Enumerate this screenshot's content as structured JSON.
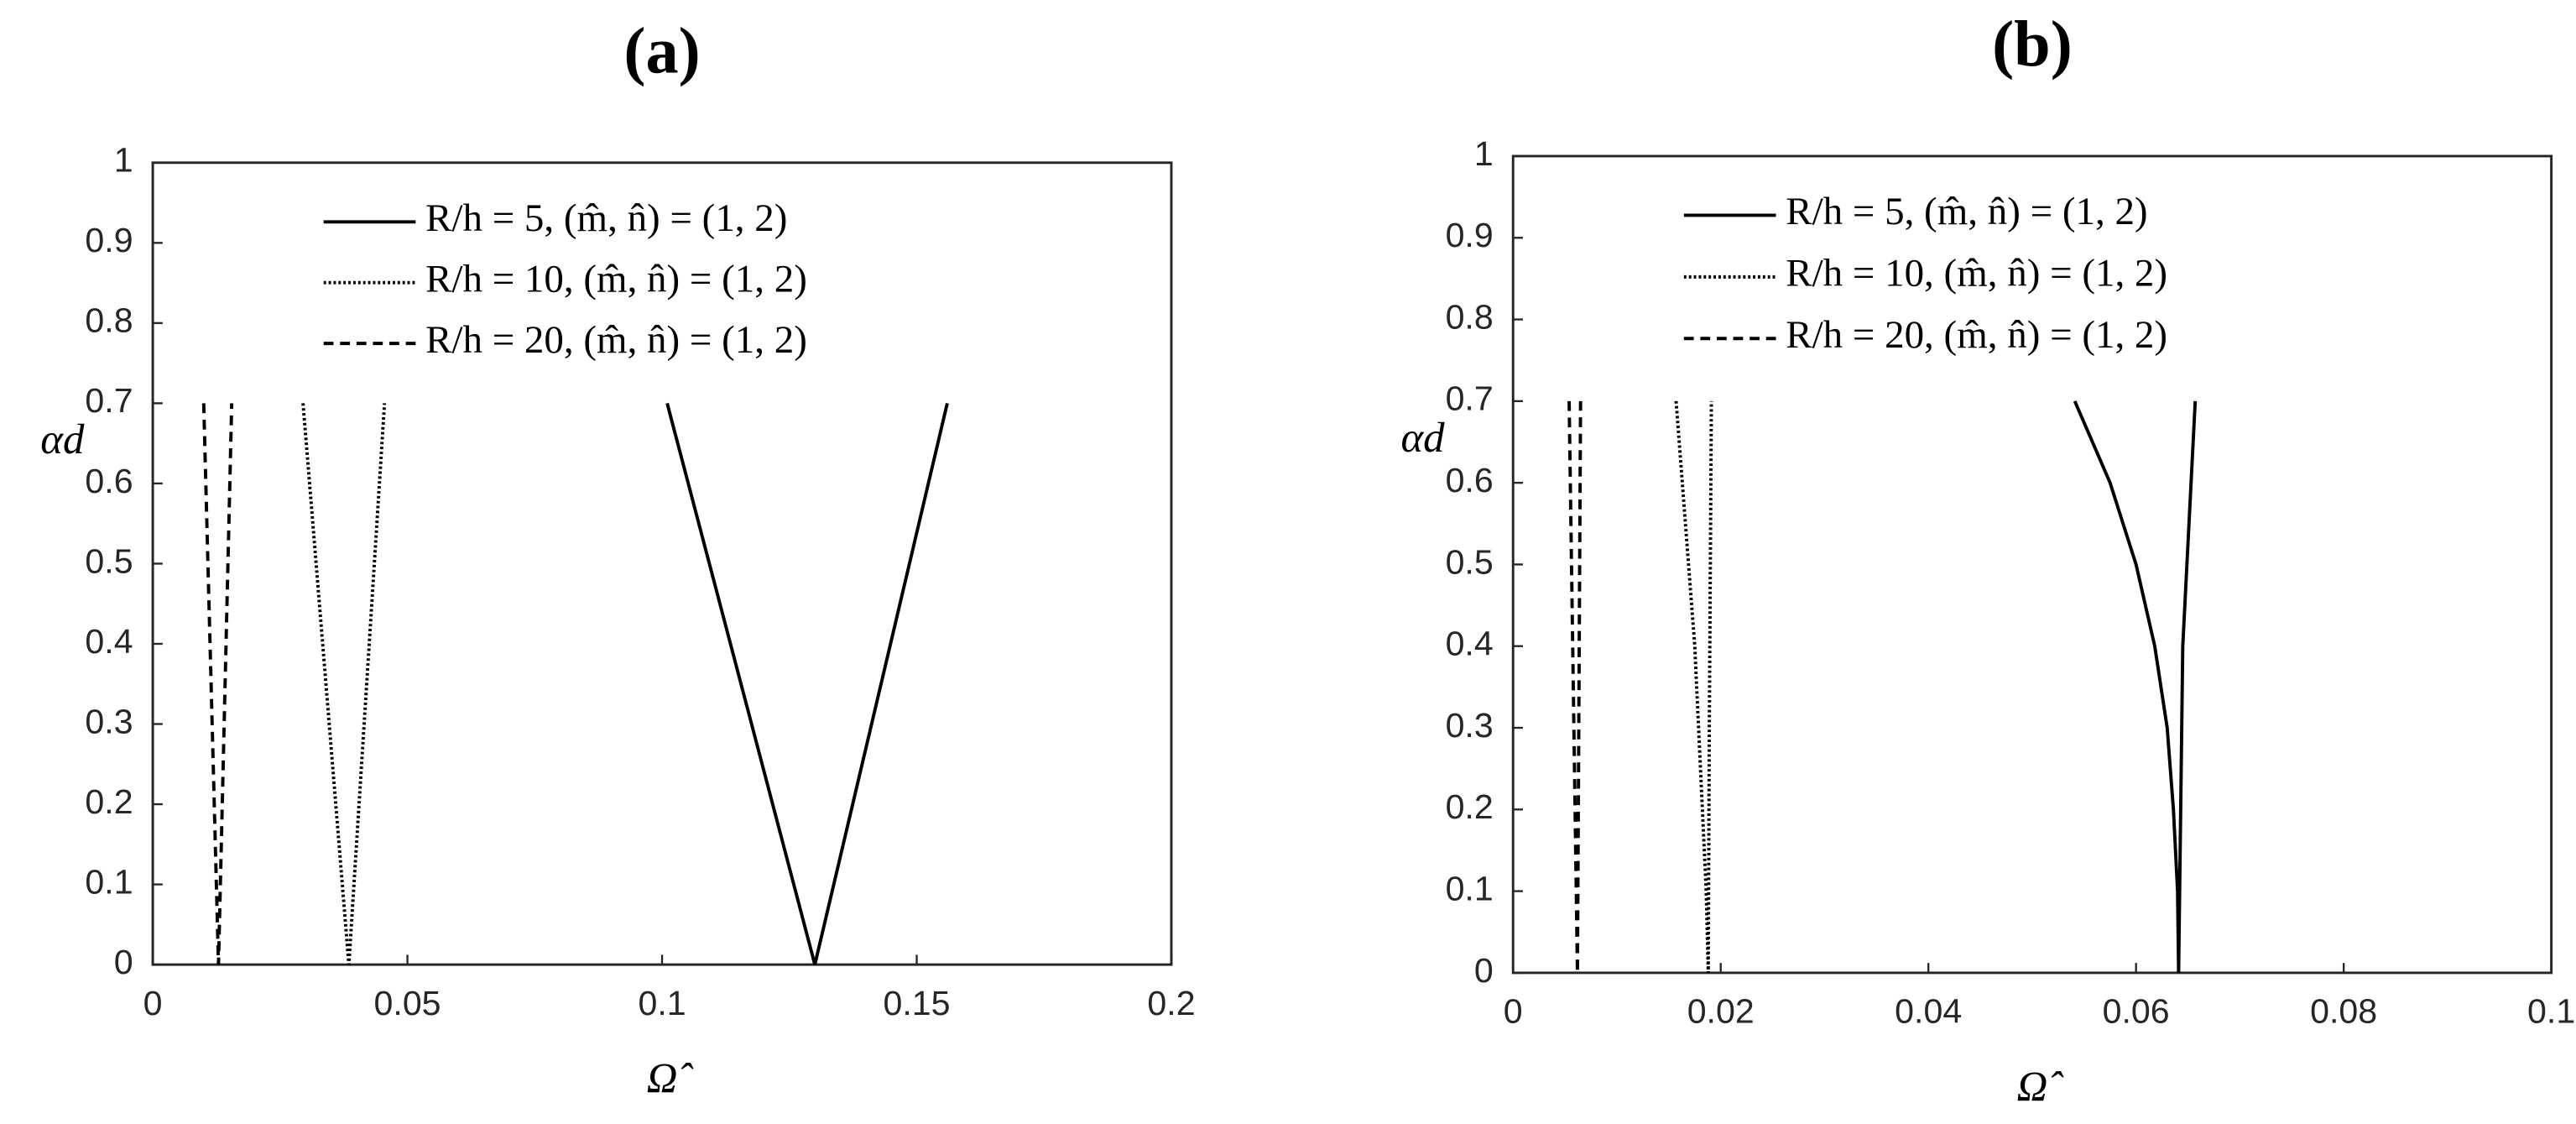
{
  "chart_data": [
    {
      "type": "line",
      "title": "(a)",
      "x_label": "Ω̂",
      "y_label": "αd",
      "xlim": [
        0,
        0.2
      ],
      "ylim": [
        0,
        1
      ],
      "xticks": [
        0,
        0.05,
        0.1,
        0.15,
        0.2
      ],
      "yticks": [
        0,
        0.1,
        0.2,
        0.3,
        0.4,
        0.5,
        0.6,
        0.7,
        0.8,
        0.9,
        1
      ],
      "legend": "upper right",
      "series": [
        {
          "name": "R/h = 5, (m̂, n̂) = (1, 2)",
          "color": "#000000",
          "line_style": "solid",
          "x": [
            0.101,
            0.13,
            0.156
          ],
          "values": [
            0.7,
            0,
            0.7
          ]
        },
        {
          "name": "R/h = 10, (m̂, n̂) = (1, 2)",
          "color": "#000000",
          "line_style": "dotted",
          "x": [
            0.0295,
            0.0385,
            0.0455
          ],
          "values": [
            0.7,
            0,
            0.7
          ]
        },
        {
          "name": "R/h = 20, (m̂, n̂) = (1, 2)",
          "color": "#000000",
          "line_style": "dashed",
          "x": [
            0.01,
            0.0129,
            0.0155
          ],
          "values": [
            0.7,
            0,
            0.7
          ]
        }
      ]
    },
    {
      "type": "line",
      "title": "(b)",
      "x_label": "Ω̂",
      "y_label": "αd",
      "xlim": [
        0,
        0.1
      ],
      "ylim": [
        0,
        1
      ],
      "xticks": [
        0,
        0.02,
        0.04,
        0.06,
        0.08,
        0.1
      ],
      "yticks": [
        0,
        0.1,
        0.2,
        0.3,
        0.4,
        0.5,
        0.6,
        0.7,
        0.8,
        0.9,
        1
      ],
      "legend": "upper right",
      "series": [
        {
          "name": "R/h = 5, (m̂, n̂) = (1, 2)",
          "color": "#000000",
          "line_style": "solid",
          "x": [
            0.0541,
            0.0575,
            0.06,
            0.0618,
            0.063,
            0.0636,
            0.064,
            0.0641,
            0.0642,
            0.0645,
            0.0657
          ],
          "values": [
            0.7,
            0.6,
            0.5,
            0.4,
            0.3,
            0.2,
            0.1,
            0,
            0.1,
            0.4,
            0.7
          ]
        },
        {
          "name": "R/h = 10, (m̂, n̂) = (1, 2)",
          "color": "#000000",
          "line_style": "dotted",
          "x": [
            0.0157,
            0.0175,
            0.0186,
            0.0188,
            0.0189,
            0.0191
          ],
          "values": [
            0.7,
            0.4,
            0.1,
            0,
            0.3,
            0.7
          ]
        },
        {
          "name": "R/h = 20, (m̂, n̂) = (1, 2)",
          "color": "#000000",
          "line_style": "dashed",
          "x": [
            0.0054,
            0.0062,
            0.0065
          ],
          "values": [
            0.7,
            0,
            0.7
          ]
        }
      ]
    }
  ]
}
